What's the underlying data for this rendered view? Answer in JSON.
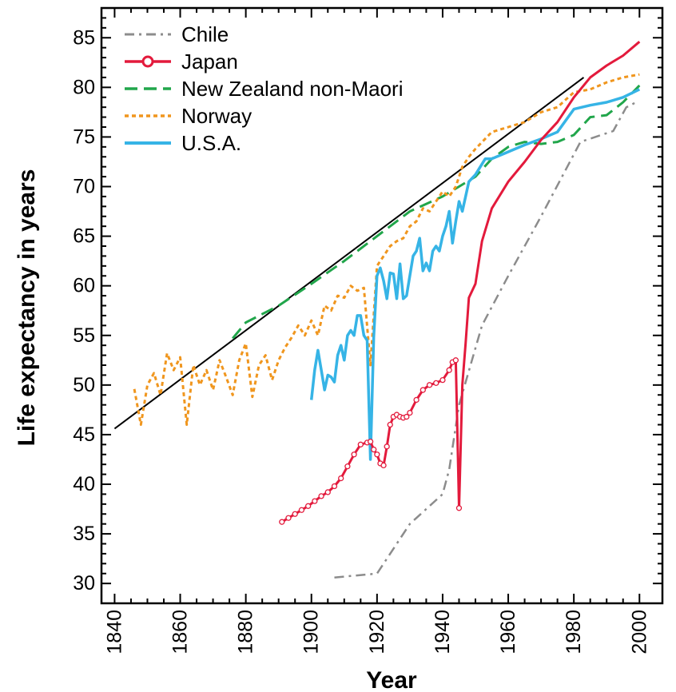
{
  "chart_data": {
    "type": "line",
    "title": "",
    "xlabel": "Year",
    "ylabel": "Life expectancy in years",
    "xlim": [
      1836,
      2007
    ],
    "ylim": [
      28,
      88
    ],
    "x_ticks": [
      "1840",
      "1860",
      "1880",
      "1900",
      "1920",
      "1940",
      "1960",
      "1980",
      "2000"
    ],
    "y_ticks": [
      "30",
      "35",
      "40",
      "45",
      "50",
      "55",
      "60",
      "65",
      "70",
      "75",
      "80",
      "85"
    ],
    "grid": false,
    "legend_position": "top-left",
    "colors": {
      "Chile": "#8c8c8c",
      "Japan": "#e31a3c",
      "New Zealand non-Maori": "#21a64b",
      "Norway": "#f0961e",
      "U.S.A.": "#36b4e6",
      "trend": "#000000"
    },
    "trend_line": {
      "x": [
        1840,
        1983
      ],
      "y": [
        45.6,
        81.0
      ]
    },
    "series": [
      {
        "name": "Chile",
        "style": "dashdot",
        "x": [
          1907,
          1920,
          1930,
          1940,
          1942,
          1945,
          1952,
          1960,
          1970,
          1982,
          1992,
          1996,
          1999
        ],
        "y": [
          30.6,
          31.0,
          36.0,
          39.0,
          41.5,
          48.0,
          56.0,
          61.0,
          67.0,
          74.5,
          75.6,
          78.0,
          78.5
        ]
      },
      {
        "name": "Japan",
        "style": "solid-markers",
        "x": [
          1891,
          1893,
          1895,
          1897,
          1899,
          1901,
          1903,
          1905,
          1907,
          1909,
          1911,
          1913,
          1915,
          1917,
          1918,
          1919,
          1920,
          1921,
          1922,
          1923,
          1924,
          1925,
          1926,
          1927,
          1928,
          1929,
          1930,
          1932,
          1934,
          1936,
          1938,
          1940,
          1942,
          1943,
          1944,
          1945,
          1946,
          1947,
          1948,
          1950,
          1952,
          1955,
          1960,
          1965,
          1970,
          1975,
          1980,
          1985,
          1990,
          1995,
          2000
        ],
        "y": [
          36.2,
          36.6,
          37.0,
          37.4,
          37.8,
          38.3,
          38.8,
          39.2,
          39.8,
          40.6,
          41.8,
          43.0,
          44.0,
          44.2,
          44.3,
          43.5,
          43.0,
          42.1,
          41.9,
          43.8,
          46.0,
          46.8,
          47.0,
          46.8,
          46.7,
          46.8,
          47.2,
          48.5,
          49.5,
          50.0,
          50.2,
          50.5,
          51.5,
          52.3,
          52.5,
          37.6,
          50.0,
          54.2,
          58.8,
          60.2,
          64.5,
          67.8,
          70.5,
          72.5,
          74.7,
          76.5,
          79.0,
          81.0,
          82.2,
          83.2,
          84.6
        ]
      },
      {
        "name": "New Zealand non-Maori",
        "style": "dashed",
        "x": [
          1876,
          1880,
          1890,
          1900,
          1910,
          1920,
          1930,
          1940,
          1945,
          1950,
          1955,
          1960,
          1965,
          1970,
          1975,
          1980,
          1985,
          1990,
          1995,
          2000
        ],
        "y": [
          54.7,
          56.3,
          58.0,
          60.2,
          62.5,
          65.0,
          67.5,
          69.0,
          70.0,
          71.0,
          72.8,
          74.0,
          74.5,
          74.3,
          74.5,
          75.2,
          77.0,
          77.2,
          78.5,
          80.2
        ]
      },
      {
        "name": "Norway",
        "style": "dotted",
        "x": [
          1846,
          1848,
          1850,
          1852,
          1854,
          1856,
          1858,
          1860,
          1862,
          1864,
          1866,
          1868,
          1870,
          1872,
          1874,
          1876,
          1878,
          1880,
          1882,
          1884,
          1886,
          1888,
          1890,
          1892,
          1894,
          1896,
          1898,
          1900,
          1902,
          1904,
          1906,
          1908,
          1910,
          1912,
          1914,
          1916,
          1918,
          1920,
          1922,
          1924,
          1926,
          1928,
          1930,
          1932,
          1934,
          1936,
          1938,
          1940,
          1942,
          1944,
          1946,
          1948,
          1950,
          1955,
          1960,
          1965,
          1970,
          1975,
          1980,
          1985,
          1990,
          1995,
          2000
        ],
        "y": [
          49.6,
          46.0,
          50.0,
          51.2,
          49.0,
          53.2,
          51.5,
          52.8,
          46.0,
          52.0,
          50.0,
          51.5,
          49.5,
          52.5,
          50.8,
          49.0,
          52.5,
          54.2,
          48.8,
          52.0,
          53.0,
          50.5,
          52.5,
          53.8,
          54.8,
          56.0,
          55.0,
          56.5,
          55.0,
          58.0,
          57.5,
          59.0,
          58.8,
          60.0,
          59.5,
          59.8,
          52.0,
          62.0,
          63.0,
          64.0,
          64.5,
          64.8,
          66.0,
          66.5,
          67.8,
          67.5,
          68.5,
          69.5,
          69.0,
          70.0,
          72.0,
          73.0,
          73.8,
          75.5,
          76.0,
          76.5,
          77.5,
          78.0,
          79.5,
          79.8,
          80.5,
          81.0,
          81.3
        ]
      },
      {
        "name": "U.S.A.",
        "style": "solid",
        "x": [
          1900,
          1901,
          1902,
          1903,
          1904,
          1905,
          1906,
          1907,
          1908,
          1909,
          1910,
          1911,
          1912,
          1913,
          1914,
          1915,
          1916,
          1917,
          1918,
          1919,
          1920,
          1921,
          1922,
          1923,
          1924,
          1925,
          1926,
          1927,
          1928,
          1929,
          1930,
          1931,
          1932,
          1933,
          1934,
          1935,
          1936,
          1937,
          1938,
          1939,
          1940,
          1941,
          1942,
          1943,
          1944,
          1945,
          1946,
          1947,
          1948,
          1950,
          1953,
          1955,
          1960,
          1965,
          1970,
          1975,
          1980,
          1985,
          1990,
          1995,
          2000
        ],
        "y": [
          48.5,
          51.5,
          53.5,
          51.5,
          49.5,
          51.0,
          50.8,
          50.3,
          53.0,
          54.0,
          52.5,
          55.0,
          55.5,
          55.0,
          57.0,
          57.0,
          55.0,
          54.5,
          42.5,
          54.8,
          61.0,
          61.8,
          60.5,
          58.7,
          61.3,
          61.2,
          58.7,
          62.2,
          58.7,
          59.0,
          61.0,
          63.0,
          63.5,
          64.8,
          61.5,
          62.3,
          61.5,
          63.5,
          64.0,
          63.5,
          65.0,
          66.0,
          67.5,
          64.3,
          66.5,
          68.5,
          67.5,
          69.0,
          70.5,
          71.2,
          72.8,
          72.8,
          73.5,
          74.2,
          74.8,
          75.5,
          77.8,
          78.2,
          78.5,
          79.0,
          79.8
        ]
      }
    ]
  }
}
